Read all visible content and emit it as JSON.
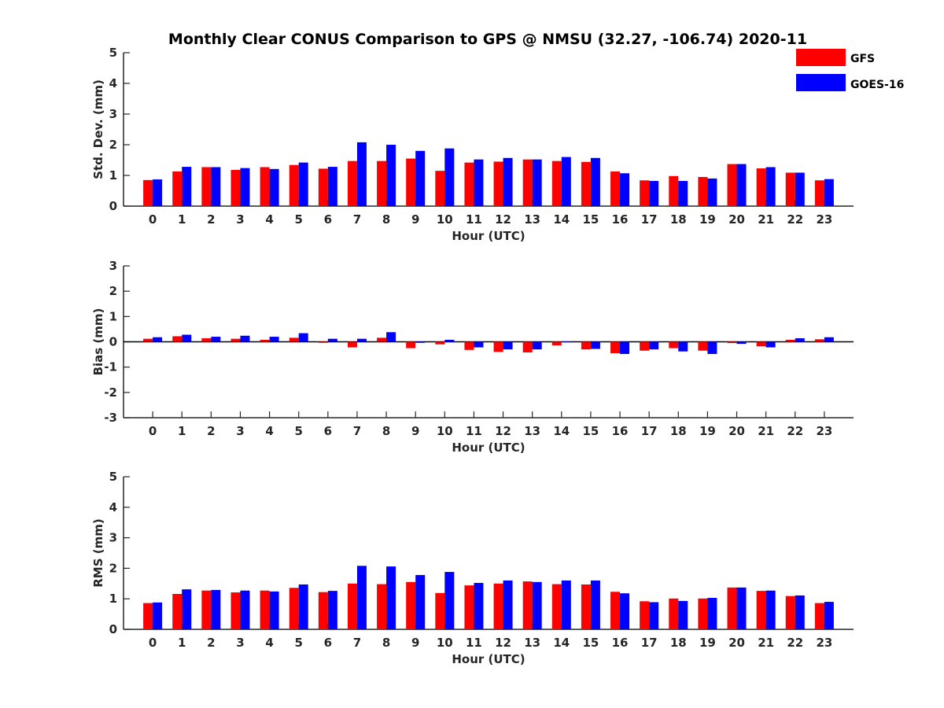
{
  "figure": {
    "title": "Monthly Clear CONUS Comparison to GPS @ NMSU (32.27, -106.74) 2020-11"
  },
  "legend": {
    "placement": "top-right",
    "items": [
      {
        "name": "GFS",
        "color": "#ff0000"
      },
      {
        "name": "GOES-16",
        "color": "#0000ff"
      }
    ]
  },
  "chart_data": [
    {
      "type": "bar",
      "xlabel": "Hour (UTC)",
      "ylabel": "Std. Dev. (mm)",
      "ylim": [
        0,
        5
      ],
      "yticks": [
        0,
        1,
        2,
        3,
        4,
        5
      ],
      "categories": [
        "0",
        "1",
        "2",
        "3",
        "4",
        "5",
        "6",
        "7",
        "8",
        "9",
        "10",
        "11",
        "12",
        "13",
        "14",
        "15",
        "16",
        "17",
        "18",
        "19",
        "20",
        "21",
        "22",
        "23"
      ],
      "series": [
        {
          "name": "GFS",
          "color": "#ff0000",
          "values": [
            0.85,
            1.13,
            1.27,
            1.18,
            1.27,
            1.34,
            1.22,
            1.47,
            1.47,
            1.55,
            1.15,
            1.42,
            1.45,
            1.52,
            1.47,
            1.44,
            1.13,
            0.84,
            0.98,
            0.95,
            1.37,
            1.23,
            1.09,
            0.84
          ]
        },
        {
          "name": "GOES-16",
          "color": "#0000ff",
          "values": [
            0.87,
            1.28,
            1.27,
            1.24,
            1.21,
            1.42,
            1.28,
            2.08,
            2.0,
            1.8,
            1.88,
            1.52,
            1.57,
            1.52,
            1.6,
            1.57,
            1.07,
            0.82,
            0.82,
            0.9,
            1.37,
            1.27,
            1.09,
            0.88
          ]
        }
      ]
    },
    {
      "type": "bar",
      "xlabel": "Hour (UTC)",
      "ylabel": "Bias (mm)",
      "ylim": [
        -3,
        3
      ],
      "yticks": [
        -3,
        -2,
        -1,
        0,
        1,
        2,
        3
      ],
      "categories": [
        "0",
        "1",
        "2",
        "3",
        "4",
        "5",
        "6",
        "7",
        "8",
        "9",
        "10",
        "11",
        "12",
        "13",
        "14",
        "15",
        "16",
        "17",
        "18",
        "19",
        "20",
        "21",
        "22",
        "23"
      ],
      "series": [
        {
          "name": "GFS",
          "color": "#ff0000",
          "values": [
            0.12,
            0.22,
            0.14,
            0.12,
            0.08,
            0.16,
            -0.04,
            -0.22,
            0.16,
            -0.25,
            -0.1,
            -0.32,
            -0.4,
            -0.42,
            -0.14,
            -0.3,
            -0.45,
            -0.35,
            -0.25,
            -0.35,
            -0.05,
            -0.18,
            0.08,
            0.1
          ]
        },
        {
          "name": "GOES-16",
          "color": "#0000ff",
          "values": [
            0.18,
            0.28,
            0.2,
            0.24,
            0.2,
            0.34,
            0.12,
            0.12,
            0.38,
            -0.04,
            0.08,
            -0.22,
            -0.3,
            -0.3,
            0.0,
            -0.28,
            -0.48,
            -0.3,
            -0.38,
            -0.48,
            -0.08,
            -0.22,
            0.14,
            0.18
          ]
        }
      ]
    },
    {
      "type": "bar",
      "xlabel": "Hour (UTC)",
      "ylabel": "RMS (mm)",
      "ylim": [
        0,
        5
      ],
      "yticks": [
        0,
        1,
        2,
        3,
        4,
        5
      ],
      "categories": [
        "0",
        "1",
        "2",
        "3",
        "4",
        "5",
        "6",
        "7",
        "8",
        "9",
        "10",
        "11",
        "12",
        "13",
        "14",
        "15",
        "16",
        "17",
        "18",
        "19",
        "20",
        "21",
        "22",
        "23"
      ],
      "series": [
        {
          "name": "GFS",
          "color": "#ff0000",
          "values": [
            0.86,
            1.16,
            1.27,
            1.21,
            1.27,
            1.36,
            1.22,
            1.5,
            1.48,
            1.55,
            1.19,
            1.44,
            1.5,
            1.57,
            1.48,
            1.47,
            1.23,
            0.92,
            1.01,
            1.01,
            1.37,
            1.26,
            1.09,
            0.86
          ]
        },
        {
          "name": "GOES-16",
          "color": "#0000ff",
          "values": [
            0.88,
            1.31,
            1.29,
            1.27,
            1.24,
            1.47,
            1.26,
            2.08,
            2.06,
            1.78,
            1.88,
            1.52,
            1.6,
            1.55,
            1.6,
            1.6,
            1.18,
            0.89,
            0.93,
            1.03,
            1.37,
            1.27,
            1.11,
            0.9
          ]
        }
      ]
    }
  ]
}
